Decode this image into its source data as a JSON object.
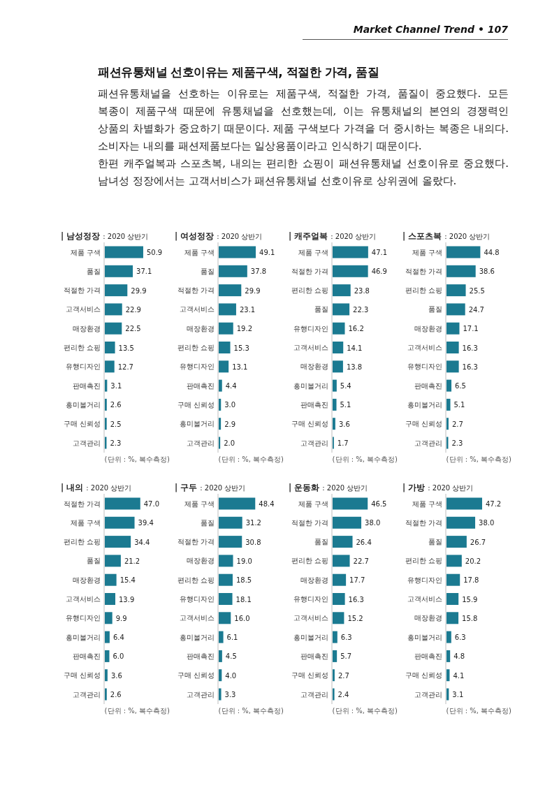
{
  "chart_data": [
    {
      "type": "other",
      "title": "패션유통채널 선호이유는 제품구색, 적절한 가격, 품질",
      "annotations": [
        "Market Channel Trend • 107",
        "패션유통채널을 선호하는 이유로는 제품구색, 적절한 가격, 품질이 중요했다. 모든 복종이 제품구색 때문에 유통채널을 선호했는데, 이는 유통채널의 본연의 경쟁력인 상품의 차별화가 중요하기 때문이다. 제품 구색보다 가격을 더 중시하는 복종은 내의다. 소비자는 내의를 패션제품보다는 일상용품이라고 인식하기 때문이다.",
        "한편 캐주얼복과 스포츠복, 내의는 편리한 쇼핑이 패션유통채널 선호이유로 중요했다. 남녀성 정장에서는 고객서비스가 패션유통채널 선호이유로 상위권에 올랐다."
      ]
    },
    {
      "type": "bar",
      "orientation": "horizontal",
      "data_labels": true,
      "color": "#1b7a91",
      "title": "| 남성정장 : 2020 상반기",
      "annotations": [
        "(단위 : %, 복수측정)"
      ],
      "categories": [
        "제품 구색",
        "품질",
        "적절한 가격",
        "고객서비스",
        "매장환경",
        "편리한 쇼핑",
        "유행디자인",
        "판매촉진",
        "흥미볼거리",
        "구매 신뢰성",
        "고객관리"
      ],
      "values": [
        50.9,
        37.1,
        29.9,
        22.9,
        22.5,
        13.5,
        12.7,
        3.1,
        2.6,
        2.5,
        2.3
      ]
    },
    {
      "type": "bar",
      "orientation": "horizontal",
      "color": "#1b7a91",
      "title": "| 여성정장 : 2020 상반기",
      "annotations": [
        "(단위 : %, 복수측정)"
      ],
      "value_labels": [
        "49.1",
        "37.8",
        "29.9",
        "23.1",
        "19.2",
        "15.3",
        "13.1",
        "4.4",
        "3.0",
        "2.9",
        "2.0"
      ],
      "categories": [
        "제품 구색",
        "품질",
        "적절한 가격",
        "고객서비스",
        "매장환경",
        "편리한 쇼핑",
        "유행디자인",
        "판매촉진",
        "구매 신뢰성",
        "흥미볼거리",
        "고객관리"
      ],
      "values": [
        49.1,
        37.8,
        29.9,
        23.1,
        19.2,
        15.3,
        13.1,
        4.4,
        3.0,
        2.9,
        2.0
      ]
    },
    {
      "type": "bar",
      "orientation": "horizontal",
      "data_labels": true,
      "color": "#1b7a91",
      "title": "| 캐주얼복 : 2020 상반기",
      "annotations": [
        "(단위 : %, 복수측정)"
      ],
      "categories": [
        "제품 구색",
        "적절한 가격",
        "편리한 쇼핑",
        "품질",
        "유행디자인",
        "고객서비스",
        "매장환경",
        "흥미볼거리",
        "판매촉진",
        "구매 신뢰성",
        "고객관리"
      ],
      "values": [
        47.1,
        46.9,
        23.8,
        22.3,
        16.2,
        14.1,
        13.8,
        5.4,
        5.1,
        3.6,
        1.7
      ]
    },
    {
      "type": "bar",
      "orientation": "horizontal",
      "data_labels": true,
      "color": "#1b7a91",
      "title": "| 스포츠복 : 2020 상반기",
      "annotations": [
        "(단위 : %, 복수측정)"
      ],
      "categories": [
        "제품 구색",
        "적절한 가격",
        "편리한 쇼핑",
        "품질",
        "매장환경",
        "고객서비스",
        "유행디자인",
        "판매촉진",
        "흥미볼거리",
        "구매 신뢰성",
        "고객관리"
      ],
      "values": [
        44.8,
        38.6,
        25.5,
        24.7,
        17.1,
        16.3,
        16.3,
        6.5,
        5.1,
        2.7,
        2.3
      ]
    },
    {
      "type": "bar",
      "orientation": "horizontal",
      "color": "#1b7a91",
      "title": "| 내의 : 2020 상반기",
      "annotations": [
        "(단위 : %, 복수측정)"
      ],
      "value_labels": [
        "47.0",
        "39.4",
        "34.4",
        "21.2",
        "15.4",
        "13.9",
        "9.9",
        "6.4",
        "6.0",
        "3.6",
        "2.6"
      ],
      "categories": [
        "적절한 가격",
        "제품 구색",
        "편리한 쇼핑",
        "품질",
        "매장환경",
        "고객서비스",
        "유행디자인",
        "흥미볼거리",
        "판매촉진",
        "구매 신뢰성",
        "고객관리"
      ],
      "values": [
        47.0,
        39.4,
        34.4,
        21.2,
        15.4,
        13.9,
        9.9,
        6.4,
        6.0,
        3.6,
        2.6
      ]
    },
    {
      "type": "bar",
      "orientation": "horizontal",
      "color": "#1b7a91",
      "title": "| 구두 : 2020 상반기",
      "annotations": [
        "(단위 : %, 복수측정)"
      ],
      "value_labels": [
        "48.4",
        "31.2",
        "30.8",
        "19.0",
        "18.5",
        "18.1",
        "16.0",
        "6.1",
        "4.5",
        "4.0",
        "3.3"
      ],
      "categories": [
        "제품 구색",
        "품질",
        "적절한 가격",
        "매장환경",
        "편리한 쇼핑",
        "유행디자인",
        "고객서비스",
        "흥미볼거리",
        "판매촉진",
        "구매 신뢰성",
        "고객관리"
      ],
      "values": [
        48.4,
        31.2,
        30.8,
        19.0,
        18.5,
        18.1,
        16.0,
        6.1,
        4.5,
        4.0,
        3.3
      ]
    },
    {
      "type": "bar",
      "orientation": "horizontal",
      "color": "#1b7a91",
      "title": "| 운동화 : 2020 상반기",
      "annotations": [
        "(단위 : %, 복수측정)"
      ],
      "value_labels": [
        "46.5",
        "38.0",
        "26.4",
        "22.7",
        "17.7",
        "16.3",
        "15.2",
        "6.3",
        "5.7",
        "2.7",
        "2.4"
      ],
      "categories": [
        "제품 구색",
        "적절한 가격",
        "품질",
        "편리한 쇼핑",
        "매장환경",
        "유행디자인",
        "고객서비스",
        "흥미볼거리",
        "판매촉진",
        "구매 신뢰성",
        "고객관리"
      ],
      "values": [
        46.5,
        38.0,
        26.4,
        22.7,
        17.7,
        16.3,
        15.2,
        6.3,
        5.7,
        2.7,
        2.4
      ]
    },
    {
      "type": "bar",
      "orientation": "horizontal",
      "color": "#1b7a91",
      "title": "| 가방 : 2020 상반기",
      "annotations": [
        "(단위 : %, 복수측정)"
      ],
      "value_labels": [
        "47.2",
        "38.0",
        "26.7",
        "20.2",
        "17.8",
        "15.9",
        "15.8",
        "6.3",
        "4.8",
        "4.1",
        "3.1"
      ],
      "categories": [
        "제품 구색",
        "적절한 가격",
        "품질",
        "편리한 쇼핑",
        "유행디자인",
        "고객서비스",
        "매장환경",
        "흥미볼거리",
        "판매촉진",
        "구매 신뢰성",
        "고객관리"
      ],
      "values": [
        47.2,
        38.0,
        26.7,
        20.2,
        17.8,
        15.9,
        15.8,
        6.3,
        4.8,
        4.1,
        3.1
      ]
    }
  ]
}
